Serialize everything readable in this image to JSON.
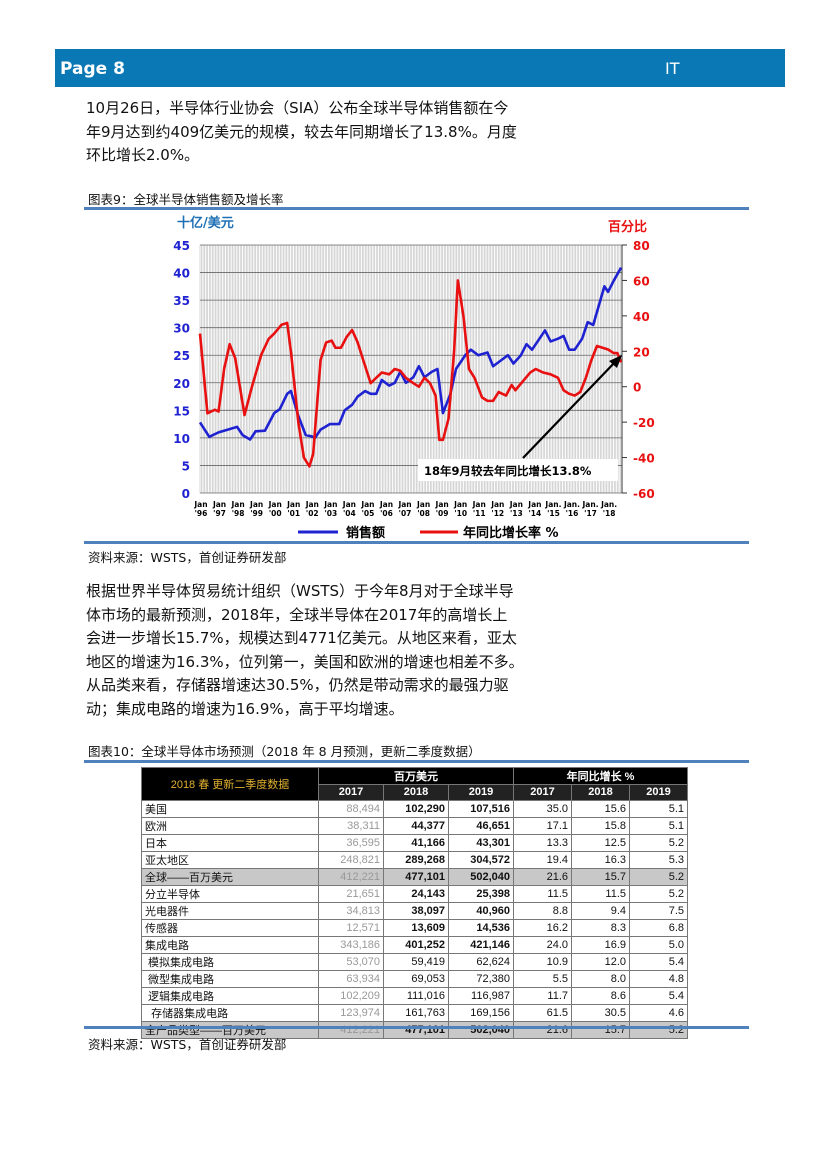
{
  "header": {
    "page": "Page 8",
    "section": "IT",
    "color": "#0a78b5"
  },
  "para1": [
    "10月26日，半导体行业协会（SIA）公布全球半导体销售额在今",
    "年9月达到约409亿美元的规模，较去年同期增长了13.8%。月度",
    "环比增长2.0%。"
  ],
  "fig9": {
    "caption": "图表9：全球半导体销售额及增长率",
    "source": "资料来源：WSTS，首创证券研发部"
  },
  "chart_data": {
    "type": "line",
    "left_axis_label": "十亿/美元",
    "right_axis_label": "百分比",
    "ylim_left": [
      0,
      45
    ],
    "yticks_left": [
      "0",
      "5",
      "10",
      "15",
      "20",
      "25",
      "30",
      "35",
      "40",
      "45"
    ],
    "ylim_right": [
      -60,
      80
    ],
    "yticks_right": [
      "-60",
      "-40",
      "-20",
      "0",
      "20",
      "40",
      "60",
      "80"
    ],
    "xticks": [
      [
        "Jan",
        "'96"
      ],
      [
        "Jan",
        "'97"
      ],
      [
        "Jan",
        "'98"
      ],
      [
        "Jan",
        "'99"
      ],
      [
        "Jan",
        "'00"
      ],
      [
        "Jan",
        "'01"
      ],
      [
        "Jan",
        "'02"
      ],
      [
        "Jan",
        "'03"
      ],
      [
        "Jan",
        "'04"
      ],
      [
        "Jan",
        "'05"
      ],
      [
        "Jan",
        "'06"
      ],
      [
        "Jan",
        "'07"
      ],
      [
        "Jan",
        "'08"
      ],
      [
        "Jan",
        "'09"
      ],
      [
        "Jan",
        "'10"
      ],
      [
        "Jan",
        "'11"
      ],
      [
        "Jan",
        "'12"
      ],
      [
        "Jan",
        "'13"
      ],
      [
        "Jan",
        "'14"
      ],
      [
        "Jan.",
        "'15"
      ],
      [
        "Jan.",
        "'16"
      ],
      [
        "Jan.",
        "'17"
      ],
      [
        "Jan.",
        "'18"
      ]
    ],
    "xrange": [
      1996.0,
      2018.75
    ],
    "grid": true,
    "annotation": "18年9月较去年同比增长13.8%",
    "legend_position": "bottom",
    "series": [
      {
        "name": "销售额",
        "axis": "left",
        "color": "#1f22d0",
        "x": [
          1996.0,
          1996.5,
          1997.0,
          1997.5,
          1998.0,
          1998.3,
          1998.7,
          1999.0,
          1999.5,
          2000.0,
          2000.3,
          2000.7,
          2000.9,
          2001.3,
          2001.7,
          2002.0,
          2002.2,
          2002.5,
          2003.0,
          2003.5,
          2003.8,
          2004.2,
          2004.5,
          2004.9,
          2005.2,
          2005.5,
          2005.8,
          2006.2,
          2006.5,
          2006.8,
          2007.1,
          2007.5,
          2007.8,
          2008.1,
          2008.5,
          2008.8,
          2009.1,
          2009.5,
          2009.8,
          2010.3,
          2010.6,
          2011.0,
          2011.5,
          2011.8,
          2012.2,
          2012.6,
          2012.9,
          2013.3,
          2013.6,
          2013.9,
          2014.3,
          2014.6,
          2014.9,
          2015.3,
          2015.6,
          2015.9,
          2016.2,
          2016.6,
          2016.9,
          2017.2,
          2017.5,
          2017.8,
          2018.0,
          2018.3,
          2018.7
        ],
        "values": [
          12.8,
          10.2,
          11,
          11.5,
          12,
          10.5,
          9.7,
          11.2,
          11.3,
          14.5,
          15.2,
          18,
          18.5,
          14,
          10.5,
          10.3,
          10,
          11.5,
          12.5,
          12.5,
          15,
          16,
          17.5,
          18.5,
          18,
          18,
          20.5,
          19.5,
          20,
          22,
          20,
          21,
          23,
          21,
          22,
          22.5,
          14.5,
          18,
          22.5,
          25,
          26,
          25,
          25.5,
          23,
          24,
          25,
          23.5,
          25,
          27,
          26,
          28,
          29.5,
          27.5,
          28,
          28.5,
          26,
          26,
          28,
          31,
          30.5,
          34,
          37.5,
          36.5,
          38.5,
          40.9
        ]
      },
      {
        "name": "年同比增长率 %",
        "axis": "right",
        "color": "#e81010",
        "x": [
          1996.0,
          1996.4,
          1996.8,
          1997.0,
          1997.3,
          1997.6,
          1997.9,
          1998.4,
          1998.8,
          1999.3,
          1999.7,
          2000.0,
          2000.4,
          2000.7,
          2000.9,
          2001.3,
          2001.6,
          2001.9,
          2002.1,
          2002.5,
          2002.8,
          2003.1,
          2003.3,
          2003.6,
          2003.9,
          2004.2,
          2004.5,
          2004.8,
          2005.2,
          2005.5,
          2005.8,
          2006.2,
          2006.5,
          2006.8,
          2007.1,
          2007.5,
          2007.8,
          2008.1,
          2008.4,
          2008.7,
          2008.9,
          2009.1,
          2009.4,
          2009.7,
          2009.9,
          2010.2,
          2010.5,
          2010.8,
          2011.2,
          2011.5,
          2011.8,
          2012.1,
          2012.5,
          2012.8,
          2013.0,
          2013.4,
          2013.8,
          2014.1,
          2014.5,
          2014.9,
          2015.3,
          2015.6,
          2015.9,
          2016.2,
          2016.5,
          2016.8,
          2017.1,
          2017.4,
          2017.7,
          2018.0,
          2018.3,
          2018.5,
          2018.7
        ],
        "values": [
          30,
          -15,
          -13,
          -14,
          10,
          24,
          16,
          -16,
          0,
          18,
          27,
          30,
          35,
          36,
          20,
          -20,
          -40,
          -45,
          -38,
          15,
          25,
          26,
          22,
          22,
          28,
          32,
          25,
          15,
          2,
          5,
          8,
          7,
          10,
          9,
          5,
          2,
          0,
          5,
          2,
          -5,
          -30,
          -30,
          -18,
          20,
          60,
          40,
          10,
          5,
          -6,
          -8,
          -8,
          -3,
          -5,
          1,
          -2,
          3,
          8,
          10,
          8,
          7,
          5,
          -2,
          -4,
          -5,
          -3,
          5,
          15,
          23,
          22,
          21,
          19,
          19,
          13.8
        ]
      }
    ]
  },
  "para2": [
    "根据世界半导体贸易统计组织（WSTS）于今年8月对于全球半导",
    "体市场的最新预测，2018年，全球半导体在2017年的高增长上",
    "会进一步增长15.7%，规模达到4771亿美元。从地区来看，亚太",
    "地区的增速为16.3%，位列第一，美国和欧洲的增速也相差不多。",
    "从品类来看，存储器增速达30.5%，仍然是带动需求的最强力驱",
    "动；集成电路的增速为16.9%，高于平均增速。"
  ],
  "fig10": {
    "caption": "图表10：全球半导体市场预测（2018 年 8 月预测，更新二季度数据）",
    "source": "资料来源：WSTS，首创证券研发部",
    "table": {
      "title": "2018 春  更新二季度数据",
      "group1": "百万美元",
      "group2": "年同比增长 %",
      "years": [
        "2017",
        "2018",
        "2019",
        "2017",
        "2018",
        "2019"
      ],
      "rows": [
        {
          "label": "美国",
          "v": [
            "88,494",
            "102,290",
            "107,516",
            "35.0",
            "15.6",
            "5.1"
          ]
        },
        {
          "label": "欧洲",
          "v": [
            "38,311",
            "44,377",
            "46,651",
            "17.1",
            "15.8",
            "5.1"
          ]
        },
        {
          "label": "日本",
          "v": [
            "36,595",
            "41,166",
            "43,301",
            "13.3",
            "12.5",
            "5.2"
          ]
        },
        {
          "label": "亚太地区",
          "v": [
            "248,821",
            "289,268",
            "304,572",
            "19.4",
            "16.3",
            "5.3"
          ]
        },
        {
          "label": "全球——百万美元",
          "v": [
            "412,221",
            "477,101",
            "502,040",
            "21.6",
            "15.7",
            "5.2"
          ]
        },
        {
          "label": "分立半导体",
          "v": [
            "21,651",
            "24,143",
            "25,398",
            "11.5",
            "11.5",
            "5.2"
          ]
        },
        {
          "label": "光电器件",
          "v": [
            "34,813",
            "38,097",
            "40,960",
            "8.8",
            "9.4",
            "7.5"
          ]
        },
        {
          "label": "传感器",
          "v": [
            "12,571",
            "13,609",
            "14,536",
            "16.2",
            "8.3",
            "6.8"
          ]
        },
        {
          "label": "集成电路",
          "v": [
            "343,186",
            "401,252",
            "421,146",
            "24.0",
            "16.9",
            "5.0"
          ]
        },
        {
          "label": " 模拟集成电路",
          "v": [
            "53,070",
            "59,419",
            "62,624",
            "10.9",
            "12.0",
            "5.4"
          ]
        },
        {
          "label": " 微型集成电路",
          "v": [
            "63,934",
            "69,053",
            "72,380",
            "5.5",
            "8.0",
            "4.8"
          ]
        },
        {
          "label": " 逻辑集成电路",
          "v": [
            "102,209",
            "111,016",
            "116,987",
            "11.7",
            "8.6",
            "5.4"
          ]
        },
        {
          "label": "  存储器集成电路",
          "v": [
            "123,974",
            "161,763",
            "169,156",
            "61.5",
            "30.5",
            "4.6"
          ]
        },
        {
          "label": "全产品类型——百万美元",
          "v": [
            "412,221",
            "477,101",
            "502,040",
            "21.6",
            "15.7",
            "5.2"
          ]
        }
      ]
    }
  }
}
